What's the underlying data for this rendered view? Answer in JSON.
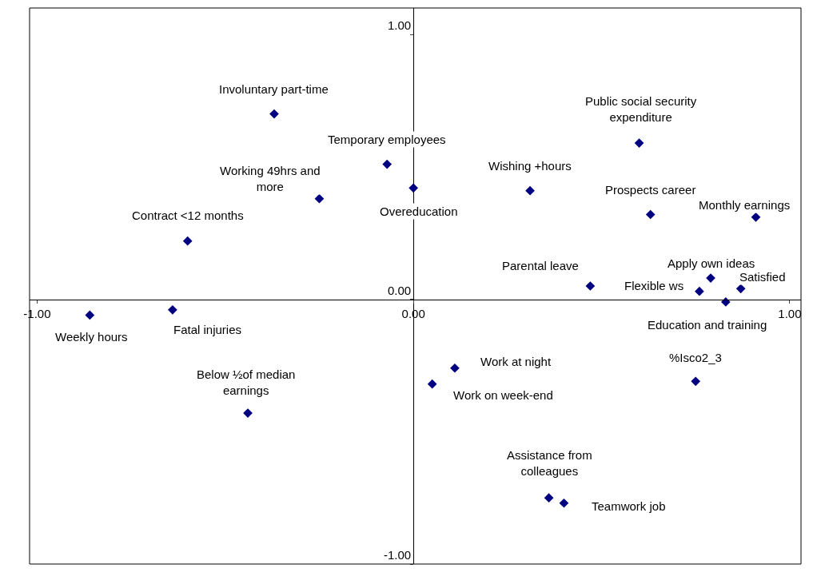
{
  "chart_data": {
    "type": "scatter",
    "x": [
      -0.37,
      -0.07,
      0.0,
      -0.25,
      -0.6,
      -0.86,
      -0.64,
      -0.44,
      0.31,
      0.6,
      0.63,
      0.91,
      0.47,
      0.79,
      0.76,
      0.87,
      0.83,
      0.75,
      0.11,
      0.05,
      0.36,
      0.4
    ],
    "series": [
      {
        "color": "#000080",
        "values": [
          0.7,
          0.51,
          0.42,
          0.38,
          0.22,
          -0.06,
          -0.04,
          -0.43,
          0.41,
          0.59,
          0.32,
          0.31,
          0.05,
          0.08,
          0.03,
          0.04,
          -0.01,
          -0.31,
          -0.26,
          -0.32,
          -0.75,
          -0.77
        ]
      }
    ],
    "xlim": [
      -1.02,
      1.03
    ],
    "ylim": [
      -1.0,
      1.1
    ],
    "xticks": [
      {
        "value": -1,
        "label": "-1.00"
      },
      {
        "value": 0,
        "label": "0.00"
      },
      {
        "value": 1,
        "label": "1.00"
      }
    ],
    "yticks": [
      {
        "value": -1,
        "label": "-1.00"
      },
      {
        "value": 0,
        "label": "0.00"
      },
      {
        "value": 1,
        "label": "1.00"
      }
    ],
    "marker": "diamond",
    "annotations": [
      {
        "text": "Involuntary part-time",
        "x": -0.37,
        "y": 0.7
      },
      {
        "text": "Temporary employees",
        "x": -0.07,
        "y": 0.51
      },
      {
        "text": "Overeducation",
        "x": 0.0,
        "y": 0.42
      },
      {
        "text": "Working 49hrs and\nmore",
        "x": -0.25,
        "y": 0.38
      },
      {
        "text": "Contract <12 months",
        "x": -0.6,
        "y": 0.22
      },
      {
        "text": "Weekly hours",
        "x": -0.86,
        "y": -0.06
      },
      {
        "text": "Fatal injuries",
        "x": -0.64,
        "y": -0.04
      },
      {
        "text": "Below ½of median\nearnings",
        "x": -0.44,
        "y": -0.43
      },
      {
        "text": "Wishing +hours",
        "x": 0.31,
        "y": 0.41
      },
      {
        "text": "Public social security\nexpenditure",
        "x": 0.6,
        "y": 0.59
      },
      {
        "text": "Prospects career",
        "x": 0.63,
        "y": 0.32
      },
      {
        "text": "Monthly earnings",
        "x": 0.91,
        "y": 0.31
      },
      {
        "text": "Parental leave",
        "x": 0.47,
        "y": 0.05
      },
      {
        "text": "Apply own ideas",
        "x": 0.79,
        "y": 0.08
      },
      {
        "text": "Flexible ws",
        "x": 0.76,
        "y": 0.03
      },
      {
        "text": "Satisfied",
        "x": 0.87,
        "y": 0.04
      },
      {
        "text": "Education and training",
        "x": 0.83,
        "y": -0.01
      },
      {
        "text": "%Isco2_3",
        "x": 0.75,
        "y": -0.31
      },
      {
        "text": "Work at night",
        "x": 0.11,
        "y": -0.26
      },
      {
        "text": "Work on week-end",
        "x": 0.05,
        "y": -0.32
      },
      {
        "text": "Assistance from\ncolleagues",
        "x": 0.36,
        "y": -0.75
      },
      {
        "text": "Teamwork job",
        "x": 0.4,
        "y": -0.77
      }
    ]
  }
}
